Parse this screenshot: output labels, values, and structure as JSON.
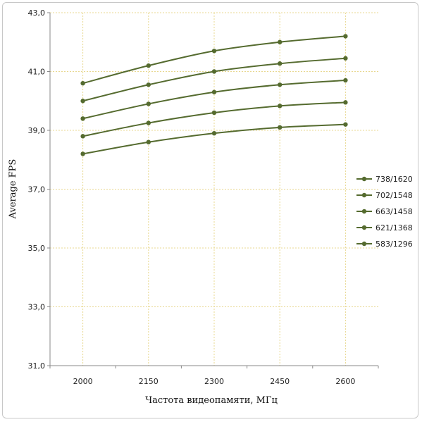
{
  "chart_data": {
    "type": "line",
    "title": "",
    "xlabel": "Частота видеопамяти, МГц",
    "ylabel": "Average FPS",
    "categories": [
      "2000",
      "2150",
      "2300",
      "2450",
      "2600"
    ],
    "ylim": [
      31.0,
      43.0
    ],
    "y_ticks": [
      "31,0",
      "33,0",
      "35,0",
      "37,0",
      "39,0",
      "41,0",
      "43,0"
    ],
    "grid": true,
    "legend_position": "right",
    "series": [
      {
        "name": "738/1620",
        "values": [
          40.6,
          41.2,
          41.7,
          42.0,
          42.2
        ]
      },
      {
        "name": "702/1548",
        "values": [
          40.0,
          40.55,
          41.0,
          41.27,
          41.45
        ]
      },
      {
        "name": "663/1458",
        "values": [
          39.4,
          39.9,
          40.3,
          40.55,
          40.7
        ]
      },
      {
        "name": "621/1368",
        "values": [
          38.8,
          39.25,
          39.6,
          39.83,
          39.95
        ]
      },
      {
        "name": "583/1296",
        "values": [
          38.2,
          38.6,
          38.9,
          39.1,
          39.2
        ]
      }
    ],
    "colors": {
      "line": "#556b2f",
      "grid": "#e8d890",
      "axis": "#888888"
    }
  }
}
